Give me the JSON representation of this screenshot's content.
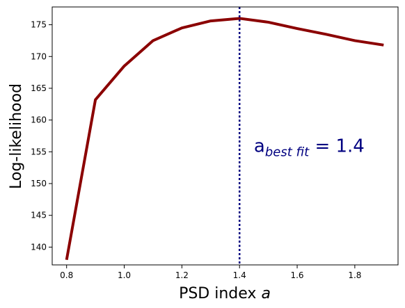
{
  "chart_data": {
    "type": "line",
    "x": [
      0.8,
      0.9,
      1.0,
      1.1,
      1.2,
      1.3,
      1.4,
      1.5,
      1.6,
      1.7,
      1.8,
      1.9
    ],
    "series": [
      {
        "values": [
          138.0,
          163.2,
          168.5,
          172.5,
          174.5,
          175.6,
          176.0,
          175.4,
          174.4,
          173.5,
          172.5,
          171.8
        ]
      }
    ],
    "xlabel_text": "PSD index ",
    "xlabel_var": "a",
    "ylabel": "Log-likelihood",
    "xlim": [
      0.75,
      1.95
    ],
    "ylim": [
      137.2,
      177.8
    ],
    "xticks": [
      0.8,
      1.0,
      1.2,
      1.4,
      1.6,
      1.8
    ],
    "xtick_labels": [
      "0.8",
      "1.0",
      "1.2",
      "1.4",
      "1.6",
      "1.8"
    ],
    "yticks": [
      140,
      145,
      150,
      155,
      160,
      165,
      170,
      175
    ],
    "ytick_labels": [
      "140",
      "145",
      "150",
      "155",
      "160",
      "165",
      "170",
      "175"
    ],
    "vline_x": 1.4,
    "annotation": {
      "base": "a",
      "subscript": "best fit",
      "suffix": " = 1.4",
      "x": 1.45,
      "y": 155
    },
    "line_color": "#8b0000",
    "vline_color": "#000080",
    "annotation_color": "#000080",
    "grid": false
  }
}
